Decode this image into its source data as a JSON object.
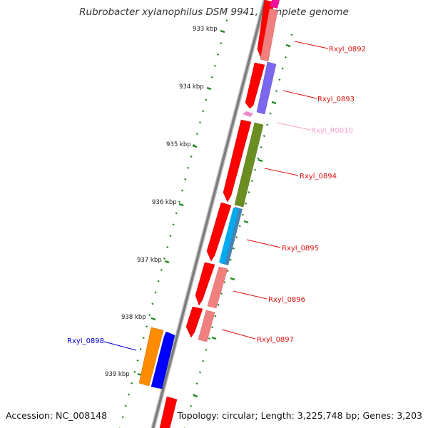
{
  "title": "Rubrobacter xylanophilus DSM 9941, complete genome",
  "footer": {
    "accession": "Accession: NC_008148",
    "topology": "Topology: circular; Length: 3,225,748 bp; Genes: 3,203"
  },
  "ticks": [
    "933 kbp",
    "934 kbp",
    "935 kbp",
    "936 kbp",
    "937 kbp",
    "938 kbp",
    "939 kbp"
  ],
  "genes": [
    {
      "label": "Rxyl_0892",
      "color": "#dd1111"
    },
    {
      "label": "Rxyl_0893",
      "color": "#dd1111"
    },
    {
      "label": "Rxyl_R0010",
      "color": "#f5a0cc"
    },
    {
      "label": "Rxyl_0894",
      "color": "#dd1111"
    },
    {
      "label": "Rxyl_0895",
      "color": "#dd1111"
    },
    {
      "label": "Rxyl_0896",
      "color": "#dd1111"
    },
    {
      "label": "Rxyl_0897",
      "color": "#dd1111"
    },
    {
      "label": "Rxyl_0898",
      "color": "#0000cc"
    }
  ],
  "colors": {
    "backbone": "#888888",
    "tick": "#228b22",
    "red": "#ff0000",
    "pink": "#f08080",
    "purple": "#7b68ee",
    "olive": "#6b8e23",
    "cyan": "#00aaee",
    "orange": "#ff8c00",
    "blue": "#0000ff",
    "magenta": "#ee1199",
    "rna": "#ee88cc"
  }
}
